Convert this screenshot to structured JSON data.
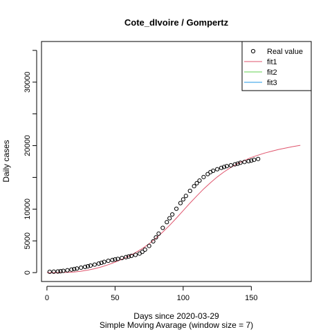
{
  "chart_data": {
    "type": "scatter",
    "title": "Cote_dIvoire / Gompertz",
    "xlabel": "Days since 2020-03-29",
    "subtitle": "Simple Moving Avarage (window size = 7)",
    "ylabel": "Daily cases",
    "xlim": [
      -4,
      194
    ],
    "ylim": [
      -1400,
      36400
    ],
    "x_ticks": [
      0,
      50,
      100,
      150
    ],
    "y_ticks": [
      0,
      5000,
      10000,
      15000,
      20000,
      25000,
      30000,
      35000
    ],
    "y_tick_labels": [
      "0",
      "5000",
      "10000",
      "",
      "20000",
      "",
      "30000",
      ""
    ],
    "legend": {
      "position": "top-right",
      "entries": [
        {
          "label": "Real value",
          "kind": "point"
        },
        {
          "label": "fit1",
          "kind": "line",
          "color": "#DF536B"
        },
        {
          "label": "fit2",
          "kind": "line",
          "color": "#61D04F"
        },
        {
          "label": "fit3",
          "kind": "line",
          "color": "#2297E6"
        }
      ]
    },
    "series": [
      {
        "name": "Real value",
        "kind": "points",
        "x": [
          2,
          5,
          8,
          10,
          12,
          15,
          18,
          20,
          22,
          25,
          28,
          30,
          32,
          35,
          38,
          40,
          42,
          45,
          48,
          50,
          52,
          55,
          58,
          60,
          62,
          65,
          68,
          70,
          72,
          75,
          78,
          80,
          82,
          85,
          88,
          90,
          92,
          95,
          98,
          100,
          102,
          105,
          108,
          110,
          112,
          115,
          118,
          120,
          122,
          125,
          128,
          130,
          132,
          135,
          138,
          140,
          142,
          145,
          148,
          150,
          152,
          155
        ],
        "y": [
          130,
          150,
          180,
          220,
          280,
          370,
          480,
          560,
          640,
          780,
          900,
          1000,
          1110,
          1260,
          1420,
          1550,
          1690,
          1860,
          1990,
          2070,
          2160,
          2300,
          2440,
          2540,
          2640,
          2790,
          3000,
          3270,
          3620,
          4200,
          4930,
          5550,
          6140,
          7050,
          7950,
          8560,
          9160,
          10060,
          10950,
          11530,
          12080,
          12870,
          13610,
          14080,
          14500,
          15050,
          15520,
          15830,
          16040,
          16280,
          16500,
          16640,
          16770,
          16900,
          17060,
          17160,
          17300,
          17420,
          17550,
          17640,
          17760,
          17900
        ]
      },
      {
        "name": "fit1",
        "kind": "line",
        "color": "#DF536B",
        "x": [
          0,
          5,
          10,
          15,
          20,
          25,
          30,
          35,
          40,
          45,
          50,
          55,
          60,
          65,
          70,
          75,
          80,
          85,
          90,
          95,
          100,
          105,
          110,
          115,
          120,
          125,
          130,
          135,
          140,
          145,
          150,
          155,
          160,
          165,
          170,
          175,
          180,
          186
        ],
        "y": [
          0,
          2,
          10,
          40,
          100,
          220,
          400,
          620,
          900,
          1250,
          1650,
          2100,
          2600,
          3150,
          3800,
          4550,
          5420,
          6390,
          7450,
          8580,
          9750,
          10950,
          12080,
          13180,
          14160,
          15070,
          15870,
          16560,
          17170,
          17670,
          18130,
          18500,
          18840,
          19120,
          19390,
          19610,
          19830,
          20050
        ]
      },
      {
        "name": "fit2",
        "kind": "line",
        "color": "#61D04F",
        "x": [],
        "y": []
      },
      {
        "name": "fit3",
        "kind": "line",
        "color": "#2297E6",
        "x": [],
        "y": []
      }
    ]
  }
}
